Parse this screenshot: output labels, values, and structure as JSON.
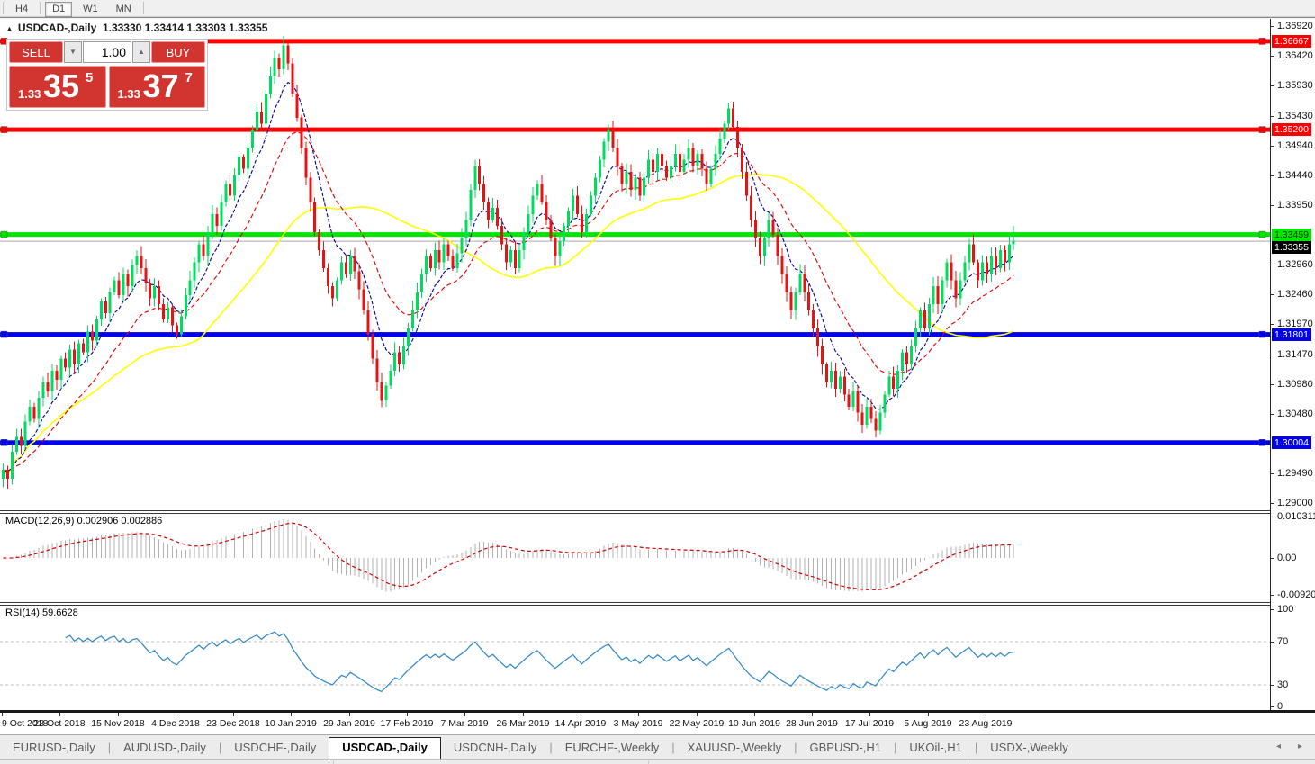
{
  "toolbar": {
    "timeframes": [
      {
        "label": "H4",
        "active": false
      },
      {
        "label": "D1",
        "active": true
      },
      {
        "label": "W1",
        "active": false
      },
      {
        "label": "MN",
        "active": false
      }
    ]
  },
  "chart": {
    "title": {
      "collapse": "▲",
      "symbol": "USDCAD-,Daily",
      "ohlc": "1.33330 1.33414 1.33303 1.33355"
    }
  },
  "trade": {
    "sell_label": "SELL",
    "buy_label": "BUY",
    "volume": "1.00",
    "spin_down": "▼",
    "spin_up": "▲",
    "sell_price": {
      "prefix": "1.33",
      "big": "35",
      "sup": "5"
    },
    "buy_price": {
      "prefix": "1.33",
      "big": "37",
      "sup": "7"
    }
  },
  "indicators": {
    "macd": {
      "label": "MACD(12,26,9) 0.002906 0.002886",
      "axis": [
        "0.010311",
        "0.00",
        "-0.009203"
      ]
    },
    "rsi": {
      "label": "RSI(14) 59.6628",
      "axis": [
        "100",
        "70",
        "30",
        "0"
      ],
      "levels": [
        70,
        30
      ]
    }
  },
  "price_axis": {
    "ticks": [
      "1.36920",
      "1.36420",
      "1.35930",
      "1.35430",
      "1.34940",
      "1.34440",
      "1.33950",
      "1.32960",
      "1.32460",
      "1.31970",
      "1.31470",
      "1.30980",
      "1.30480",
      "1.29490",
      "1.29000"
    ],
    "tags": [
      {
        "text": "1.36667",
        "price": 1.36667,
        "bg": "#ff0000",
        "fg": "#ffffff"
      },
      {
        "text": "1.35200",
        "price": 1.352,
        "bg": "#ff0000",
        "fg": "#ffffff"
      },
      {
        "text": "1.33459",
        "price": 1.33459,
        "bg": "#00e600",
        "fg": "#003300"
      },
      {
        "text": "1.33355",
        "price": 1.33355,
        "bg": "#000000",
        "fg": "#ffffff"
      },
      {
        "text": "1.31801",
        "price": 1.31801,
        "bg": "#0000ee",
        "fg": "#ffffff"
      },
      {
        "text": "1.30004",
        "price": 1.30004,
        "bg": "#0000ee",
        "fg": "#ffffff"
      }
    ]
  },
  "tabs": {
    "items": [
      {
        "label": "EURUSD-,Daily",
        "active": false
      },
      {
        "label": "AUDUSD-,Daily",
        "active": false
      },
      {
        "label": "USDCHF-,Daily",
        "active": false
      },
      {
        "label": "USDCAD-,Daily",
        "active": true
      },
      {
        "label": "USDCNH-,Daily",
        "active": false
      },
      {
        "label": "EURCHF-,Weekly",
        "active": false
      },
      {
        "label": "XAUUSD-,Weekly",
        "active": false
      },
      {
        "label": "GBPUSD-,H1",
        "active": false
      },
      {
        "label": "UKOil-,H1",
        "active": false
      },
      {
        "label": "USDX-,Weekly",
        "active": false
      }
    ],
    "scroll_left": "◂",
    "scroll_right": "▸"
  },
  "chart_data": {
    "type": "candlestick",
    "symbol": "USDCAD",
    "period": "Daily",
    "last_ohlc": {
      "open": 1.3333,
      "high": 1.33414,
      "low": 1.33303,
      "close": 1.33355
    },
    "y_range": [
      1.29,
      1.3692
    ],
    "x_labels": [
      "9 Oct 2018",
      "28 Oct 2018",
      "15 Nov 2018",
      "4 Dec 2018",
      "23 Dec 2018",
      "10 Jan 2019",
      "29 Jan 2019",
      "17 Feb 2019",
      "7 Mar 2019",
      "26 Mar 2019",
      "14 Apr 2019",
      "3 May 2019",
      "22 May 2019",
      "10 Jun 2019",
      "28 Jun 2019",
      "17 Jul 2019",
      "5 Aug 2019",
      "23 Aug 2019"
    ],
    "bars_per_label": 13,
    "closes": [
      1.2955,
      1.294,
      1.2985,
      1.301,
      1.2995,
      1.3035,
      1.306,
      1.304,
      1.3075,
      1.31,
      1.3085,
      1.312,
      1.3105,
      1.314,
      1.3125,
      1.3155,
      1.313,
      1.3165,
      1.315,
      1.3185,
      1.317,
      1.3205,
      1.3235,
      1.3215,
      1.325,
      1.327,
      1.3245,
      1.328,
      1.326,
      1.3295,
      1.331,
      1.329,
      1.3265,
      1.324,
      1.326,
      1.323,
      1.3205,
      1.3225,
      1.3195,
      1.318,
      1.321,
      1.3245,
      1.327,
      1.33,
      1.333,
      1.331,
      1.335,
      1.338,
      1.336,
      1.34,
      1.343,
      1.341,
      1.3445,
      1.3475,
      1.3455,
      1.349,
      1.352,
      1.355,
      1.353,
      1.358,
      1.361,
      1.364,
      1.362,
      1.366,
      1.363,
      1.358,
      1.354,
      1.349,
      1.344,
      1.34,
      1.335,
      1.332,
      1.329,
      1.326,
      1.324,
      1.327,
      1.33,
      1.328,
      1.331,
      1.3285,
      1.3255,
      1.322,
      1.318,
      1.314,
      1.31,
      1.307,
      1.3095,
      1.312,
      1.315,
      1.313,
      1.316,
      1.319,
      1.322,
      1.325,
      1.328,
      1.331,
      1.329,
      1.332,
      1.33,
      1.333,
      1.331,
      1.329,
      1.3315,
      1.334,
      1.337,
      1.342,
      1.346,
      1.343,
      1.34,
      1.337,
      1.339,
      1.336,
      1.333,
      1.33,
      1.332,
      1.329,
      1.332,
      1.335,
      1.338,
      1.341,
      1.343,
      1.34,
      1.337,
      1.334,
      1.331,
      1.3335,
      1.336,
      1.3385,
      1.341,
      1.338,
      1.335,
      1.338,
      1.341,
      1.344,
      1.347,
      1.35,
      1.352,
      1.349,
      1.346,
      1.343,
      1.345,
      1.342,
      1.344,
      1.341,
      1.344,
      1.347,
      1.345,
      1.348,
      1.346,
      1.344,
      1.346,
      1.348,
      1.345,
      1.347,
      1.349,
      1.346,
      1.348,
      1.3455,
      1.343,
      1.3455,
      1.348,
      1.3505,
      1.353,
      1.3555,
      1.3525,
      1.349,
      1.345,
      1.341,
      1.337,
      1.334,
      1.331,
      1.334,
      1.337,
      1.3345,
      1.331,
      1.328,
      1.325,
      1.322,
      1.325,
      1.328,
      1.325,
      1.322,
      1.319,
      1.316,
      1.313,
      1.31,
      1.312,
      1.309,
      1.311,
      1.308,
      1.306,
      1.3085,
      1.305,
      1.303,
      1.306,
      1.304,
      1.302,
      1.305,
      1.308,
      1.311,
      1.309,
      1.312,
      1.315,
      1.313,
      1.316,
      1.319,
      1.322,
      1.319,
      1.323,
      1.326,
      1.323,
      1.327,
      1.33,
      1.327,
      1.324,
      1.327,
      1.33,
      1.333,
      1.33,
      1.327,
      1.33,
      1.328,
      1.331,
      1.329,
      1.332,
      1.33,
      1.333,
      1.33355
    ],
    "hlines": [
      {
        "price": 1.36667,
        "color": "#ff0000"
      },
      {
        "price": 1.352,
        "color": "#ff0000"
      },
      {
        "price": 1.33459,
        "color": "#00e600"
      },
      {
        "price": 1.31801,
        "color": "#0000ee"
      },
      {
        "price": 1.30004,
        "color": "#0000ee"
      }
    ],
    "current_price": 1.33355,
    "moving_averages": [
      {
        "name": "fast-ema",
        "period": 8,
        "color": "#00009c",
        "dash": "4 2"
      },
      {
        "name": "medium-ema",
        "period": 20,
        "color": "#dd0000",
        "dash": "5 3"
      },
      {
        "name": "slow-sma",
        "period": 45,
        "color": "#ffff00",
        "dash": ""
      }
    ],
    "macd": {
      "fast": 12,
      "slow": 26,
      "signal": 9,
      "value": 0.002906,
      "signal_value": 0.002886,
      "axis_max": 0.010311,
      "axis_min": -0.009203
    },
    "rsi": {
      "period": 14,
      "value": 59.6628,
      "levels": [
        70,
        30
      ]
    },
    "colors": {
      "bull": "#00dc5f",
      "bear": "#e41414",
      "macd_hist": "#b2b2b2",
      "macd_signal": "#d40000",
      "rsi_line": "#2e86c8",
      "current_line": "#aaaaaa"
    }
  }
}
